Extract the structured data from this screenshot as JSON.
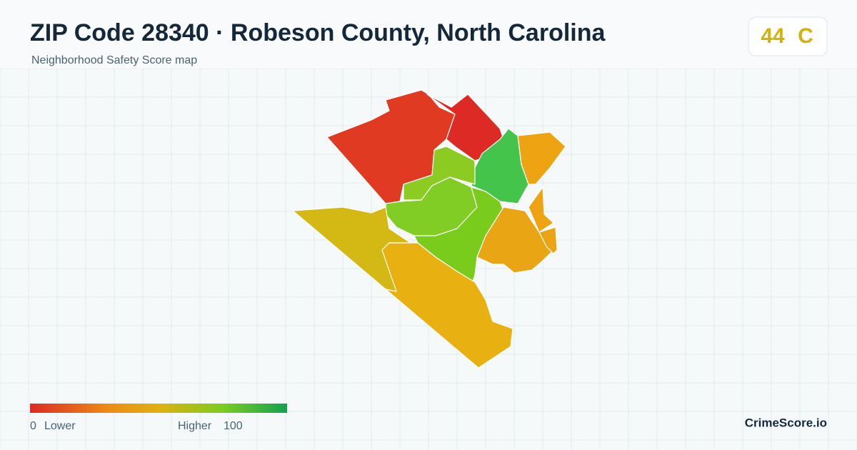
{
  "header": {
    "title": "ZIP Code 28340 · Robeson County, North Carolina",
    "subtitle": "Neighborhood Safety Score map",
    "score": "44",
    "grade": "C"
  },
  "legend": {
    "min": "0",
    "low_label": "Lower",
    "high_label": "Higher",
    "max": "100"
  },
  "footer": {
    "brand": "CrimeScore.io"
  }
}
